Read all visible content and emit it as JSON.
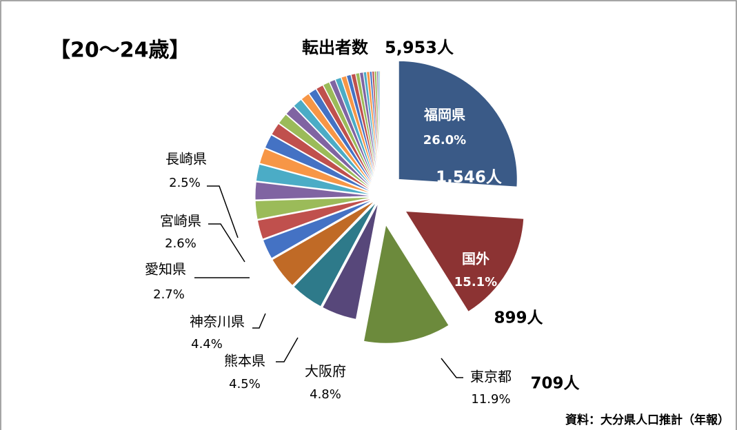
{
  "chart_data": {
    "type": "pie",
    "header": "【20～24歳】",
    "title": "転出者数　5,953人",
    "source": "資料：大分県人口推計（年報）",
    "categories": [
      "福岡県",
      "国外",
      "東京都",
      "大阪府",
      "熊本県",
      "神奈川県",
      "愛知県",
      "宮崎県",
      "長崎県",
      null,
      null,
      null,
      null,
      null,
      null,
      null,
      null,
      null,
      null,
      null,
      null,
      null,
      null,
      null,
      null,
      null,
      null,
      null,
      null,
      null,
      null,
      null,
      null,
      null,
      null,
      null
    ],
    "values": [
      26,
      15.1,
      11.9,
      4.8,
      4.5,
      4.4,
      2.7,
      2.6,
      2.5,
      2.4,
      2.3,
      2.1,
      1.9,
      1.7,
      1.5,
      1.4,
      1.3,
      1.2,
      1.1,
      1,
      0.9,
      0.8,
      0.8,
      0.7,
      0.6,
      0.6,
      0.5,
      0.5,
      0.4,
      0.4,
      0.3,
      0.3,
      0.3,
      0.2,
      0.2,
      0.1
    ],
    "value_labels": [
      "26.0%",
      "15.1%",
      "11.9%",
      "4.8%",
      "4.5%",
      "4.4%",
      "2.7%",
      "2.6%",
      "2.5%",
      null,
      null,
      null,
      null,
      null,
      null,
      null,
      null,
      null,
      null,
      null,
      null,
      null,
      null,
      null,
      null,
      null,
      null,
      null,
      null,
      null,
      null,
      null,
      null,
      null,
      null,
      null
    ],
    "count_labels": [
      "1,546人",
      "899人",
      "709人"
    ],
    "palette": [
      "#3a5a87",
      "#8c3333",
      "#6c8a3c",
      "#57477a",
      "#2e7a8a",
      "#c06a26",
      "#4472c4",
      "#c0504d",
      "#9bbb59",
      "#8064a2",
      "#4bacc6",
      "#f79646"
    ]
  }
}
